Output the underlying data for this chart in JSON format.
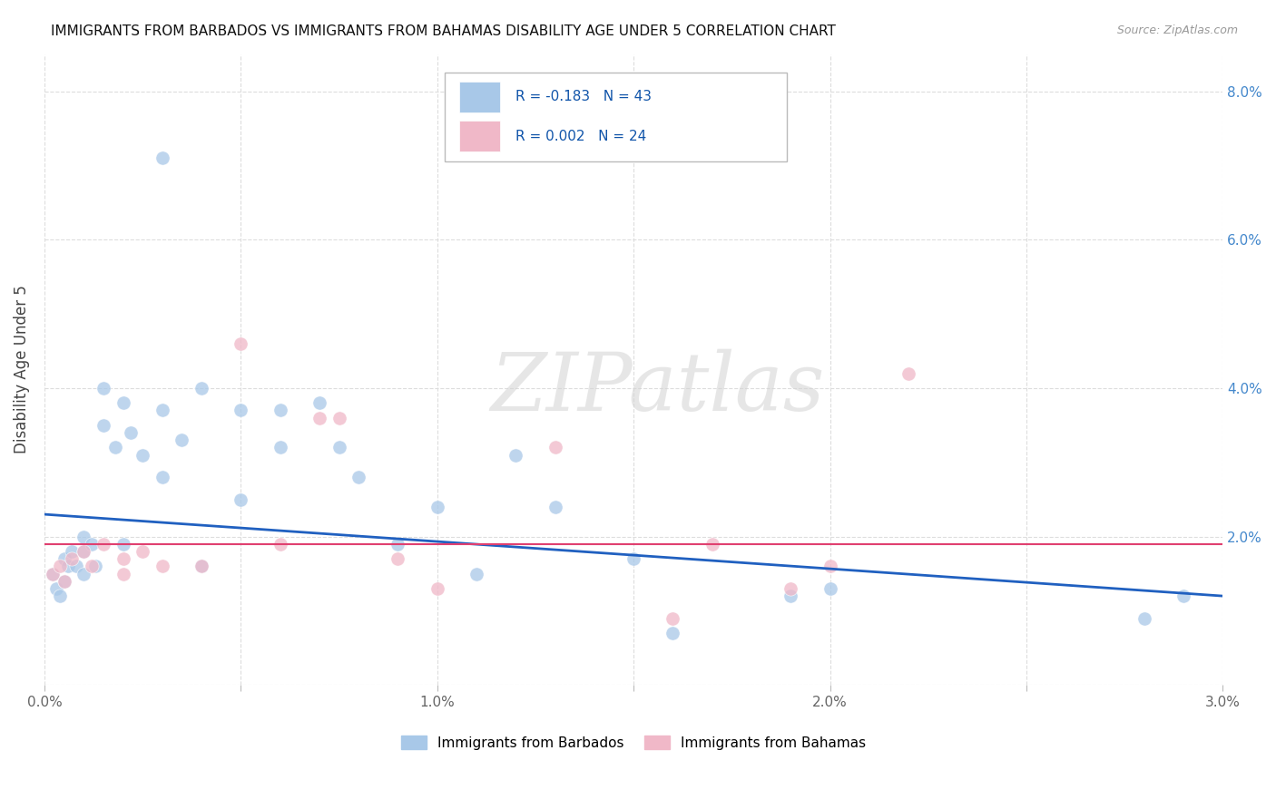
{
  "title": "IMMIGRANTS FROM BARBADOS VS IMMIGRANTS FROM BAHAMAS DISABILITY AGE UNDER 5 CORRELATION CHART",
  "source": "Source: ZipAtlas.com",
  "ylabel": "Disability Age Under 5",
  "xlim": [
    0.0,
    0.03
  ],
  "ylim": [
    0.0,
    0.085
  ],
  "xticks": [
    0.0,
    0.005,
    0.01,
    0.015,
    0.02,
    0.025,
    0.03
  ],
  "xticklabels": [
    "0.0%",
    "",
    "1.0%",
    "",
    "2.0%",
    "",
    "3.0%"
  ],
  "yticks": [
    0.0,
    0.02,
    0.04,
    0.06,
    0.08
  ],
  "yticklabels": [
    "",
    "2.0%",
    "4.0%",
    "6.0%",
    "8.0%"
  ],
  "barbados_R": -0.183,
  "barbados_N": 43,
  "bahamas_R": 0.002,
  "bahamas_N": 24,
  "barbados_color": "#a8c8e8",
  "bahamas_color": "#f0b8c8",
  "barbados_line_color": "#2060c0",
  "bahamas_line_color": "#e04070",
  "legend_label_barbados": "Immigrants from Barbados",
  "legend_label_bahamas": "Immigrants from Bahamas",
  "barbados_x": [
    0.0002,
    0.0003,
    0.0004,
    0.0005,
    0.0005,
    0.0006,
    0.0007,
    0.0008,
    0.001,
    0.001,
    0.001,
    0.0012,
    0.0013,
    0.0015,
    0.0015,
    0.0018,
    0.002,
    0.002,
    0.0022,
    0.0025,
    0.003,
    0.003,
    0.0035,
    0.004,
    0.004,
    0.005,
    0.005,
    0.006,
    0.006,
    0.007,
    0.0075,
    0.008,
    0.009,
    0.01,
    0.011,
    0.012,
    0.013,
    0.015,
    0.016,
    0.019,
    0.02,
    0.028,
    0.029
  ],
  "barbados_y": [
    0.015,
    0.013,
    0.012,
    0.017,
    0.014,
    0.016,
    0.018,
    0.016,
    0.02,
    0.015,
    0.018,
    0.019,
    0.016,
    0.04,
    0.035,
    0.032,
    0.038,
    0.019,
    0.034,
    0.031,
    0.037,
    0.028,
    0.033,
    0.04,
    0.016,
    0.037,
    0.025,
    0.037,
    0.032,
    0.038,
    0.032,
    0.028,
    0.019,
    0.024,
    0.015,
    0.031,
    0.024,
    0.017,
    0.007,
    0.012,
    0.013,
    0.009,
    0.012
  ],
  "barbados_outlier_x": [
    0.003
  ],
  "barbados_outlier_y": [
    0.071
  ],
  "bahamas_x": [
    0.0002,
    0.0004,
    0.0005,
    0.0007,
    0.001,
    0.0012,
    0.0015,
    0.002,
    0.002,
    0.0025,
    0.003,
    0.004,
    0.005,
    0.006,
    0.007,
    0.0075,
    0.009,
    0.01,
    0.013,
    0.016,
    0.017,
    0.019,
    0.02,
    0.022
  ],
  "bahamas_y": [
    0.015,
    0.016,
    0.014,
    0.017,
    0.018,
    0.016,
    0.019,
    0.017,
    0.015,
    0.018,
    0.016,
    0.016,
    0.046,
    0.019,
    0.036,
    0.036,
    0.017,
    0.013,
    0.032,
    0.009,
    0.019,
    0.013,
    0.016,
    0.042
  ],
  "barbados_size": 120,
  "bahamas_size": 120,
  "blue_line_y0": 0.023,
  "blue_line_y1": 0.012,
  "pink_line_y0": 0.019,
  "pink_line_y1": 0.019,
  "watermark": "ZIPatlas",
  "background_color": "#ffffff",
  "grid_color": "#dddddd"
}
